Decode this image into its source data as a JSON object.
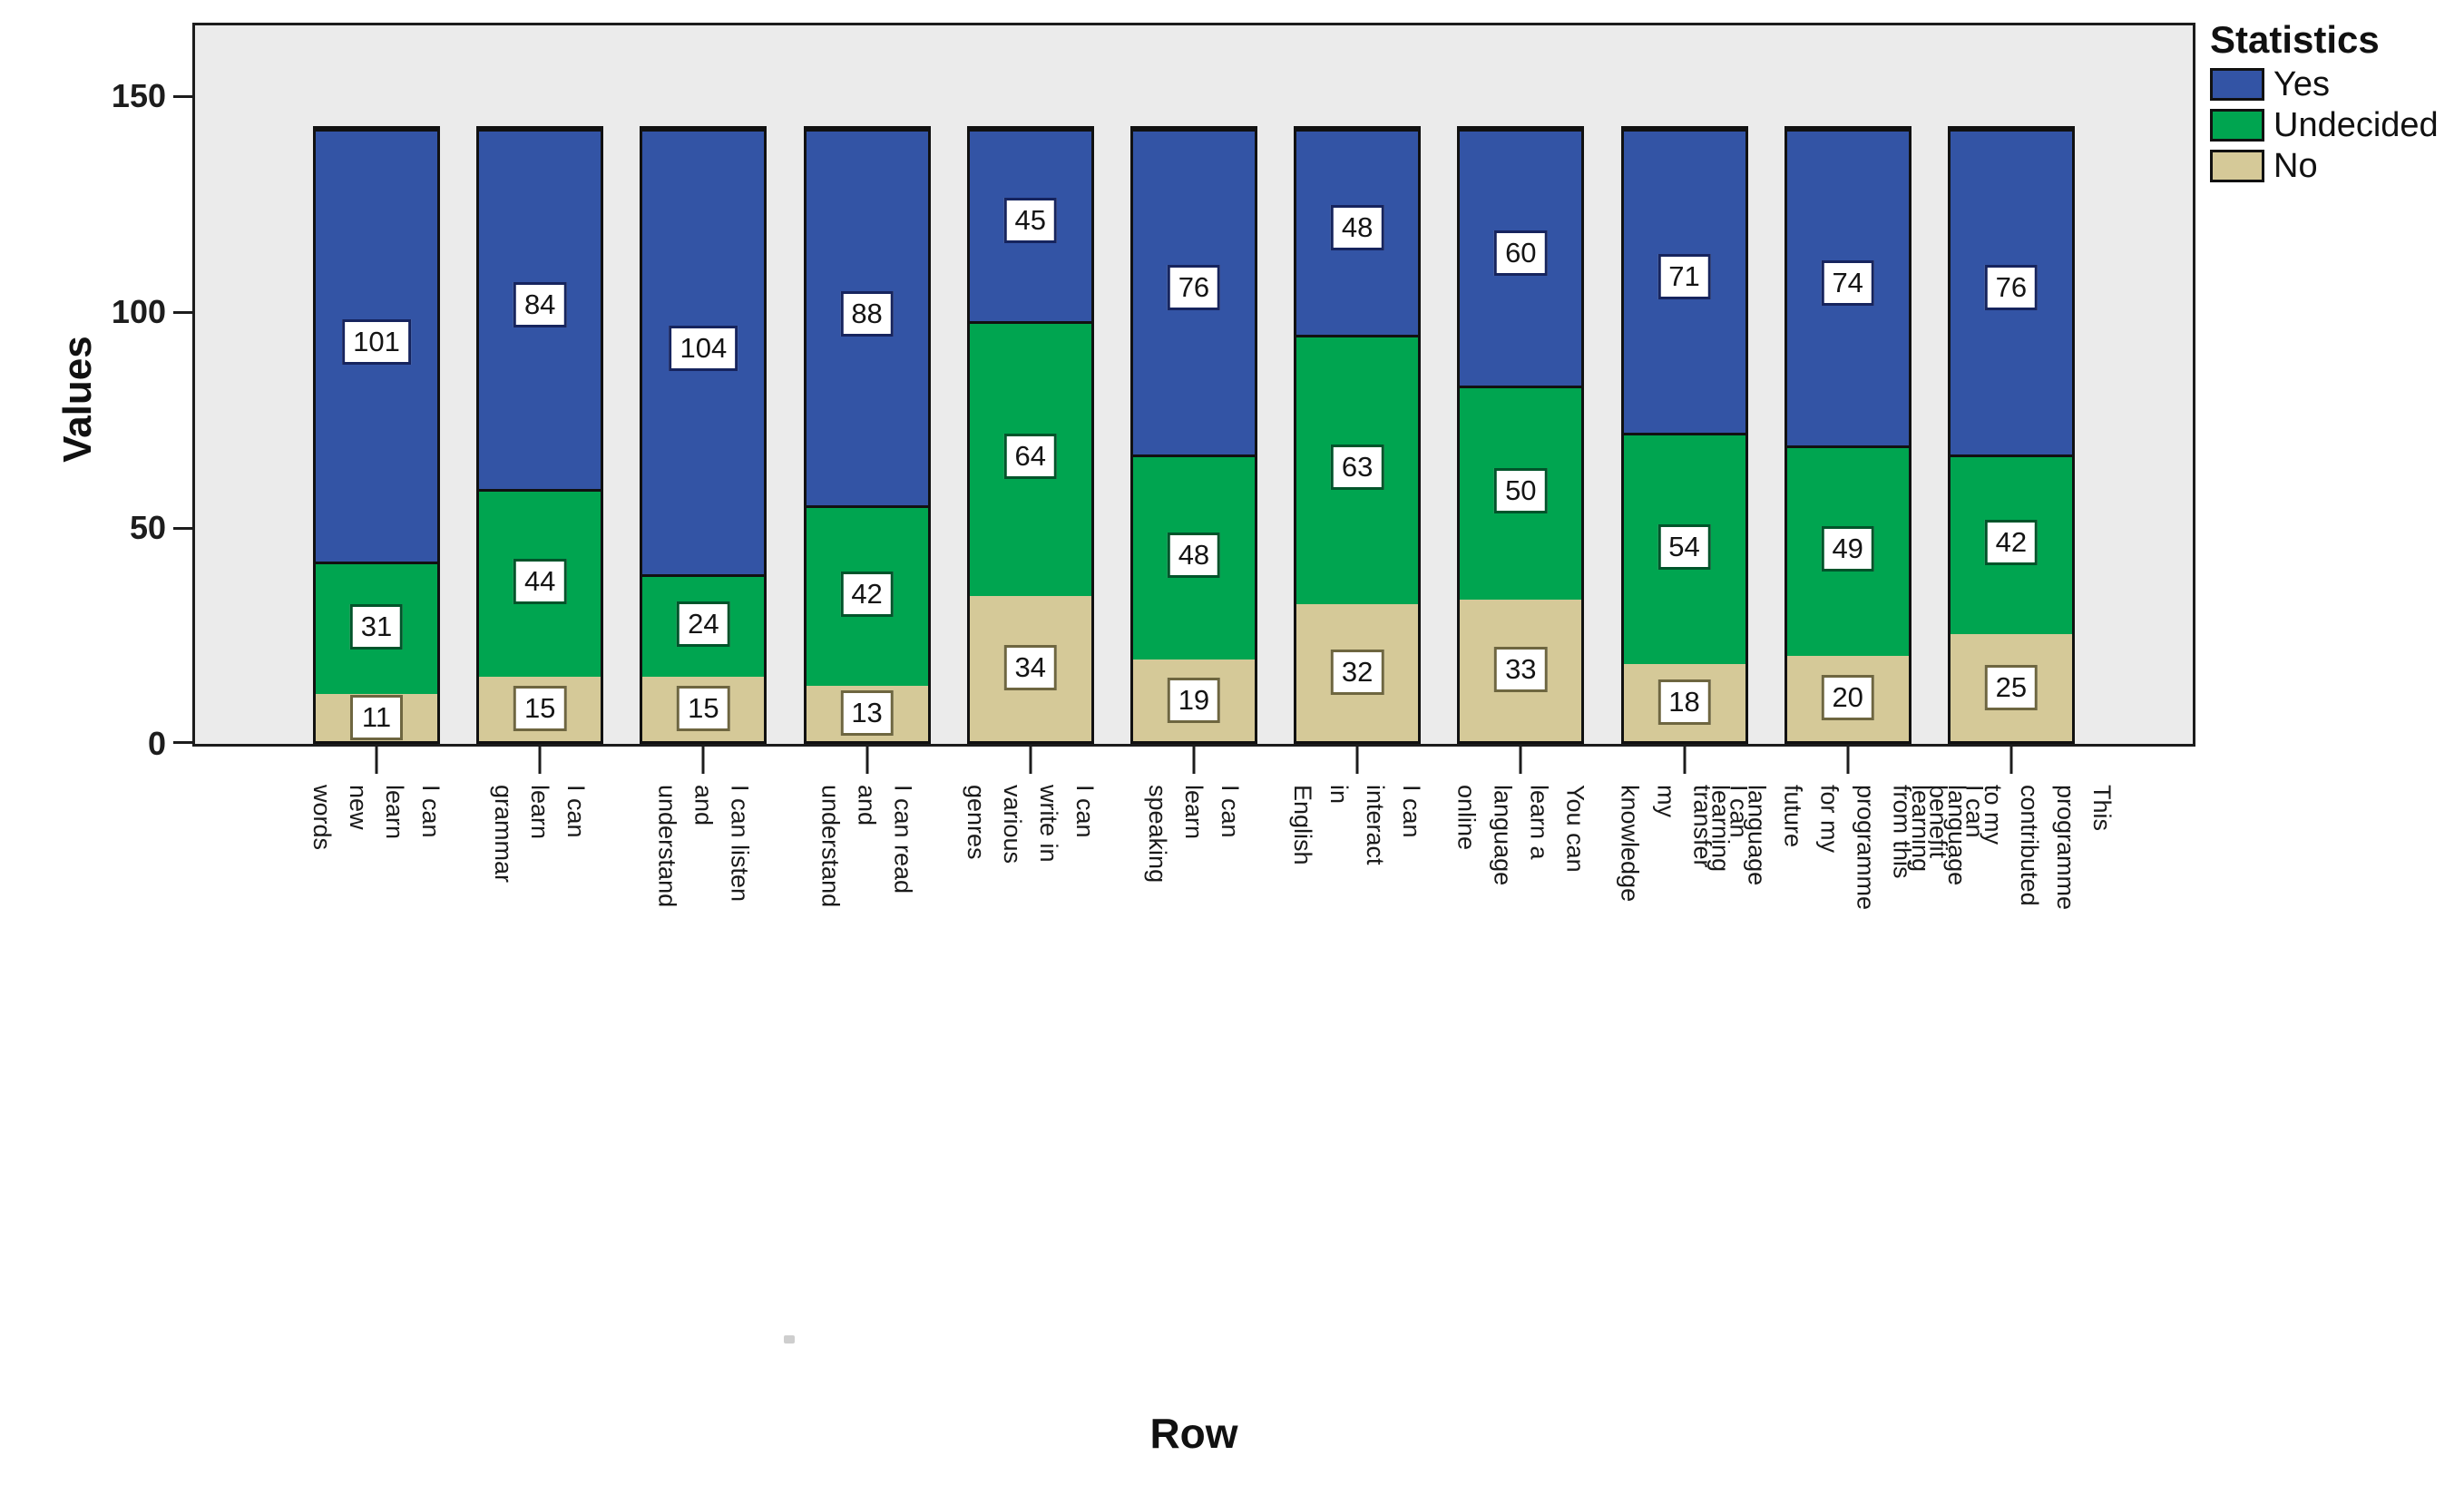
{
  "chart_data": {
    "type": "bar",
    "stacked": true,
    "orientation": "vertical",
    "title": "",
    "xlabel": "Row",
    "ylabel": "Values",
    "legend_title": "Statistics",
    "legend_position": "top-right",
    "grid": false,
    "plot_background": "#ebebeb",
    "y_ticks": [
      0,
      50,
      100,
      150
    ],
    "ylim": [
      0,
      167
    ],
    "bar_total": 143,
    "stack_order_bottom_to_top": [
      "No",
      "Undecided",
      "Yes"
    ],
    "categories": [
      "I can learn new words",
      "I can learn grammar",
      "I can listen and understand",
      "I can read and understand",
      "I can write in various genres",
      "I can learn speaking",
      "I can interact in English",
      "You can learn a language online",
      "I can transfer my knowledge",
      "I can benefit from this programme for my future language\nlearning",
      "This programme contributed to my language learning"
    ],
    "series": [
      {
        "name": "Yes",
        "color": "#3354a5",
        "label_border": "#16245e",
        "values": [
          101,
          84,
          104,
          88,
          45,
          76,
          48,
          60,
          71,
          74,
          76
        ]
      },
      {
        "name": "Undecided",
        "color": "#00a550",
        "label_border": "#00542a",
        "values": [
          31,
          44,
          24,
          42,
          64,
          48,
          63,
          50,
          54,
          49,
          42
        ]
      },
      {
        "name": "No",
        "color": "#d5c998",
        "label_border": "#6e6640",
        "values": [
          11,
          15,
          15,
          13,
          34,
          19,
          32,
          33,
          18,
          20,
          25
        ]
      }
    ]
  }
}
